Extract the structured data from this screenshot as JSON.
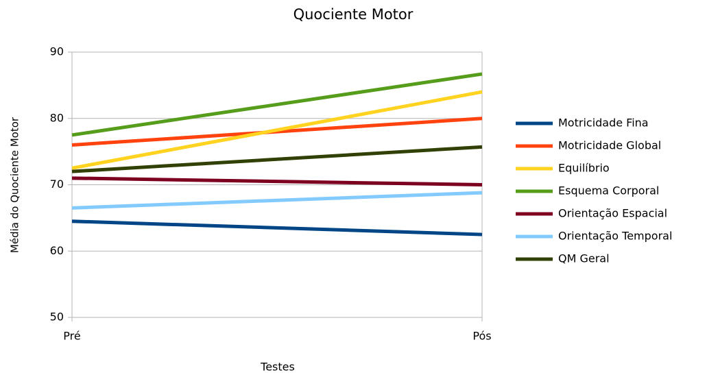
{
  "chart_data": {
    "type": "line",
    "title": "Quociente Motor",
    "x_label": "Testes",
    "y_label": "Média do Quociente Motor",
    "categories": [
      "Pré",
      "Pós"
    ],
    "series": [
      {
        "name": "Motricidade Fina",
        "color": "#004586",
        "values": [
          64.5,
          62.5
        ]
      },
      {
        "name": "Motricidade Global",
        "color": "#ff420e",
        "values": [
          76,
          80
        ]
      },
      {
        "name": "Equilíbrio",
        "color": "#ffd320",
        "values": [
          72.5,
          84
        ]
      },
      {
        "name": "Esquema Corporal",
        "color": "#579d1c",
        "values": [
          77.5,
          86.7
        ]
      },
      {
        "name": "Orientação Espacial",
        "color": "#7e0021",
        "values": [
          71,
          70
        ]
      },
      {
        "name": "Orientação Temporal",
        "color": "#83caff",
        "values": [
          66.5,
          68.8
        ]
      },
      {
        "name": "QM Geral",
        "color": "#314004",
        "values": [
          72,
          75.7
        ]
      }
    ],
    "ylim": [
      50,
      90
    ],
    "yticks": [
      50,
      60,
      70,
      80,
      90
    ],
    "grid": true,
    "legend": "right"
  }
}
